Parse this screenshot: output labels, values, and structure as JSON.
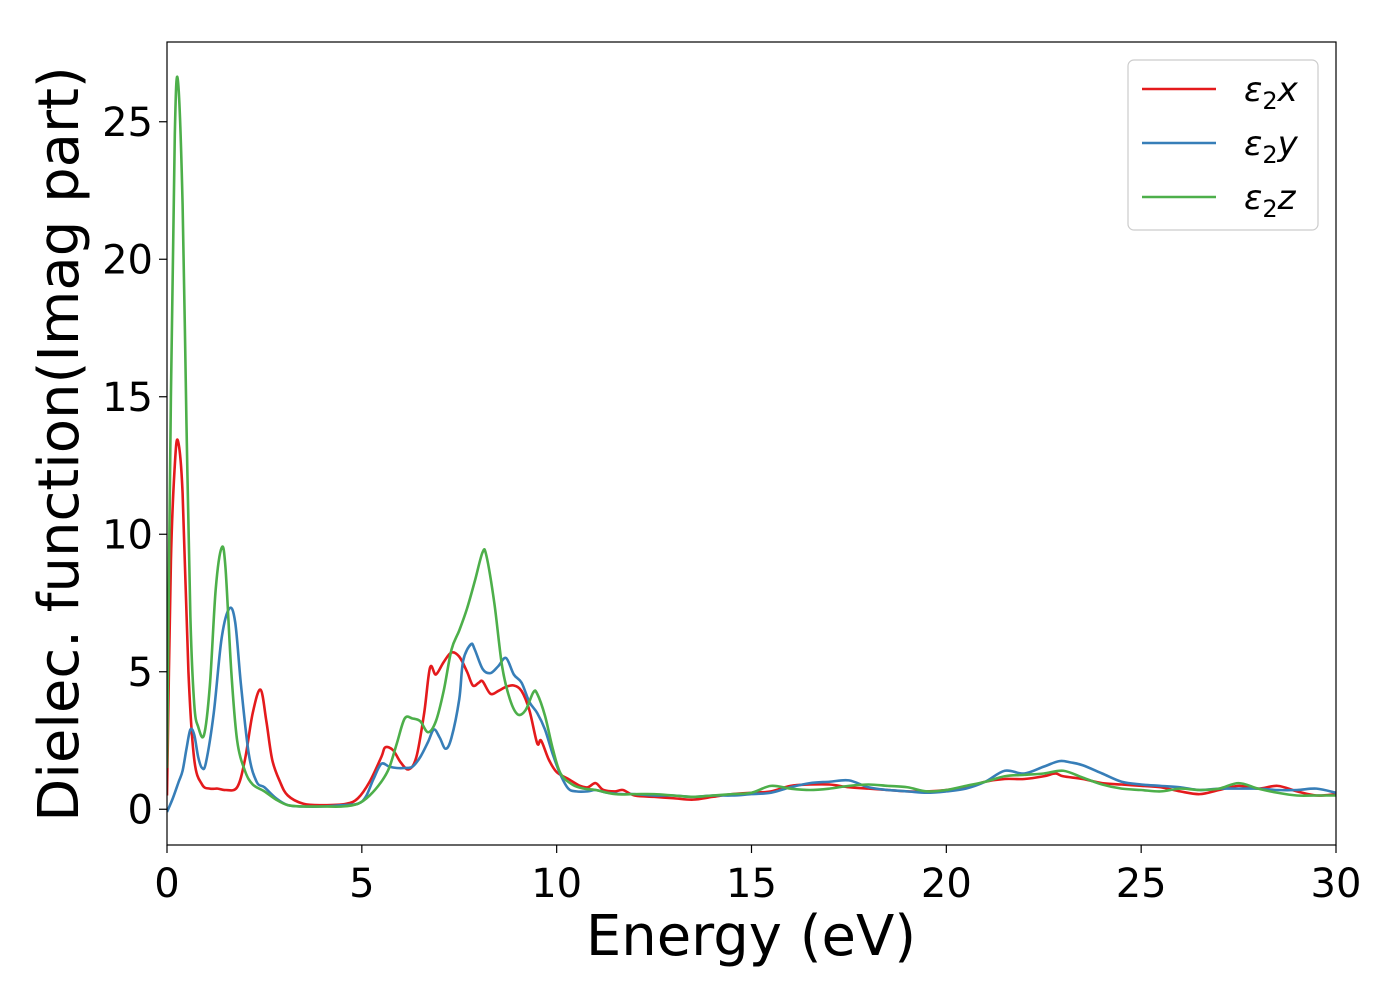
{
  "chart_data": {
    "type": "line",
    "title": "",
    "xlabel": "Energy (eV)",
    "ylabel": "Dielec. function(Imag part)",
    "xlim": [
      0,
      30
    ],
    "ylim": [
      -1.3,
      27.9
    ],
    "xticks": [
      0,
      5,
      10,
      15,
      20,
      25,
      30
    ],
    "xtick_labels": [
      "0",
      "5",
      "10",
      "15",
      "20",
      "25",
      "30"
    ],
    "yticks": [
      0,
      5,
      10,
      15,
      20,
      25
    ],
    "ytick_labels": [
      "0",
      "5",
      "10",
      "15",
      "20",
      "25"
    ],
    "grid": false,
    "legend_position": "top-right",
    "series": [
      {
        "name": "ε2x",
        "legend": {
          "base": "ε",
          "sub": "2",
          "suffix": "x"
        },
        "color": "#e41a1c",
        "points": [
          [
            0,
            0.5
          ],
          [
            0.1,
            9
          ],
          [
            0.2,
            12.5
          ],
          [
            0.28,
            13.4
          ],
          [
            0.4,
            11.5
          ],
          [
            0.55,
            5
          ],
          [
            0.7,
            1.8
          ],
          [
            0.9,
            0.9
          ],
          [
            1.1,
            0.75
          ],
          [
            1.3,
            0.75
          ],
          [
            1.5,
            0.7
          ],
          [
            1.8,
            0.8
          ],
          [
            2.0,
            1.8
          ],
          [
            2.2,
            3.5
          ],
          [
            2.4,
            4.35
          ],
          [
            2.55,
            3.2
          ],
          [
            2.7,
            1.8
          ],
          [
            2.9,
            1.0
          ],
          [
            3.1,
            0.5
          ],
          [
            3.5,
            0.2
          ],
          [
            4.0,
            0.15
          ],
          [
            4.6,
            0.2
          ],
          [
            4.9,
            0.4
          ],
          [
            5.2,
            1.0
          ],
          [
            5.5,
            1.9
          ],
          [
            5.6,
            2.25
          ],
          [
            5.8,
            2.15
          ],
          [
            6.0,
            1.7
          ],
          [
            6.2,
            1.45
          ],
          [
            6.4,
            1.9
          ],
          [
            6.6,
            3.5
          ],
          [
            6.75,
            5.15
          ],
          [
            6.9,
            4.9
          ],
          [
            7.1,
            5.35
          ],
          [
            7.3,
            5.7
          ],
          [
            7.5,
            5.55
          ],
          [
            7.7,
            5.0
          ],
          [
            7.85,
            4.5
          ],
          [
            8.0,
            4.6
          ],
          [
            8.1,
            4.65
          ],
          [
            8.3,
            4.2
          ],
          [
            8.5,
            4.3
          ],
          [
            8.7,
            4.45
          ],
          [
            8.9,
            4.5
          ],
          [
            9.1,
            4.3
          ],
          [
            9.3,
            3.6
          ],
          [
            9.5,
            2.4
          ],
          [
            9.6,
            2.5
          ],
          [
            9.8,
            1.8
          ],
          [
            10.0,
            1.35
          ],
          [
            10.3,
            1.1
          ],
          [
            10.6,
            0.85
          ],
          [
            10.8,
            0.8
          ],
          [
            11.0,
            0.95
          ],
          [
            11.2,
            0.7
          ],
          [
            11.5,
            0.65
          ],
          [
            11.7,
            0.7
          ],
          [
            12.0,
            0.5
          ],
          [
            12.5,
            0.45
          ],
          [
            13.0,
            0.4
          ],
          [
            13.5,
            0.35
          ],
          [
            14.0,
            0.45
          ],
          [
            14.5,
            0.55
          ],
          [
            15.0,
            0.6
          ],
          [
            15.5,
            0.65
          ],
          [
            16.0,
            0.85
          ],
          [
            16.5,
            0.9
          ],
          [
            17.0,
            0.9
          ],
          [
            17.5,
            0.8
          ],
          [
            18.0,
            0.75
          ],
          [
            18.5,
            0.7
          ],
          [
            19.0,
            0.65
          ],
          [
            19.5,
            0.65
          ],
          [
            20.0,
            0.7
          ],
          [
            20.5,
            0.8
          ],
          [
            21.0,
            1.0
          ],
          [
            21.5,
            1.1
          ],
          [
            22.0,
            1.1
          ],
          [
            22.5,
            1.2
          ],
          [
            22.8,
            1.3
          ],
          [
            23.0,
            1.2
          ],
          [
            23.5,
            1.1
          ],
          [
            24.0,
            0.95
          ],
          [
            24.5,
            0.9
          ],
          [
            25.0,
            0.85
          ],
          [
            25.5,
            0.8
          ],
          [
            26.0,
            0.65
          ],
          [
            26.5,
            0.55
          ],
          [
            27.0,
            0.7
          ],
          [
            27.5,
            0.85
          ],
          [
            28.0,
            0.75
          ],
          [
            28.5,
            0.85
          ],
          [
            29.0,
            0.65
          ],
          [
            29.5,
            0.5
          ],
          [
            30.0,
            0.55
          ]
        ]
      },
      {
        "name": "ε2y",
        "legend": {
          "base": "ε",
          "sub": "2",
          "suffix": "y"
        },
        "color": "#377eb8",
        "points": [
          [
            0,
            -0.1
          ],
          [
            0.15,
            0.4
          ],
          [
            0.3,
            1.0
          ],
          [
            0.4,
            1.4
          ],
          [
            0.5,
            2.2
          ],
          [
            0.6,
            2.9
          ],
          [
            0.7,
            2.7
          ],
          [
            0.8,
            1.9
          ],
          [
            0.9,
            1.5
          ],
          [
            1.0,
            1.7
          ],
          [
            1.2,
            3.5
          ],
          [
            1.4,
            6.2
          ],
          [
            1.6,
            7.3
          ],
          [
            1.75,
            6.8
          ],
          [
            1.9,
            4.5
          ],
          [
            2.1,
            2.0
          ],
          [
            2.3,
            1.0
          ],
          [
            2.5,
            0.8
          ],
          [
            2.8,
            0.4
          ],
          [
            3.1,
            0.15
          ],
          [
            3.5,
            0.1
          ],
          [
            4.0,
            0.1
          ],
          [
            4.5,
            0.15
          ],
          [
            4.9,
            0.2
          ],
          [
            5.1,
            0.45
          ],
          [
            5.3,
            1.1
          ],
          [
            5.5,
            1.65
          ],
          [
            5.7,
            1.55
          ],
          [
            5.9,
            1.5
          ],
          [
            6.1,
            1.5
          ],
          [
            6.3,
            1.55
          ],
          [
            6.5,
            1.9
          ],
          [
            6.7,
            2.45
          ],
          [
            6.85,
            2.9
          ],
          [
            7.0,
            2.6
          ],
          [
            7.15,
            2.2
          ],
          [
            7.3,
            2.6
          ],
          [
            7.5,
            4.0
          ],
          [
            7.6,
            5.4
          ],
          [
            7.8,
            6.0
          ],
          [
            7.9,
            5.8
          ],
          [
            8.1,
            5.1
          ],
          [
            8.3,
            4.95
          ],
          [
            8.5,
            5.2
          ],
          [
            8.7,
            5.5
          ],
          [
            8.9,
            4.9
          ],
          [
            9.1,
            4.6
          ],
          [
            9.3,
            3.9
          ],
          [
            9.5,
            3.5
          ],
          [
            9.7,
            2.9
          ],
          [
            9.9,
            2.0
          ],
          [
            10.1,
            1.25
          ],
          [
            10.3,
            0.75
          ],
          [
            10.5,
            0.65
          ],
          [
            10.8,
            0.65
          ],
          [
            11.0,
            0.7
          ],
          [
            11.3,
            0.6
          ],
          [
            11.7,
            0.55
          ],
          [
            12.0,
            0.55
          ],
          [
            12.5,
            0.5
          ],
          [
            13.0,
            0.5
          ],
          [
            13.5,
            0.45
          ],
          [
            14.0,
            0.5
          ],
          [
            14.5,
            0.5
          ],
          [
            15.0,
            0.55
          ],
          [
            15.5,
            0.6
          ],
          [
            16.0,
            0.8
          ],
          [
            16.5,
            0.95
          ],
          [
            17.0,
            1.0
          ],
          [
            17.5,
            1.05
          ],
          [
            18.0,
            0.8
          ],
          [
            18.5,
            0.7
          ],
          [
            19.0,
            0.65
          ],
          [
            19.5,
            0.6
          ],
          [
            20.0,
            0.65
          ],
          [
            20.5,
            0.75
          ],
          [
            21.0,
            1.0
          ],
          [
            21.5,
            1.4
          ],
          [
            22.0,
            1.3
          ],
          [
            22.5,
            1.55
          ],
          [
            22.9,
            1.75
          ],
          [
            23.2,
            1.7
          ],
          [
            23.5,
            1.6
          ],
          [
            24.0,
            1.3
          ],
          [
            24.5,
            1.0
          ],
          [
            25.0,
            0.9
          ],
          [
            25.5,
            0.85
          ],
          [
            26.0,
            0.8
          ],
          [
            26.5,
            0.7
          ],
          [
            27.0,
            0.75
          ],
          [
            27.5,
            0.75
          ],
          [
            28.0,
            0.75
          ],
          [
            28.5,
            0.7
          ],
          [
            29.0,
            0.7
          ],
          [
            29.5,
            0.75
          ],
          [
            30.0,
            0.6
          ]
        ]
      },
      {
        "name": "ε2z",
        "legend": {
          "base": "ε",
          "sub": "2",
          "suffix": "z"
        },
        "color": "#4daf4a",
        "points": [
          [
            0,
            1.5
          ],
          [
            0.1,
            15
          ],
          [
            0.2,
            24.5
          ],
          [
            0.28,
            26.5
          ],
          [
            0.4,
            22
          ],
          [
            0.5,
            14
          ],
          [
            0.6,
            7
          ],
          [
            0.7,
            3.8
          ],
          [
            0.8,
            3.0
          ],
          [
            0.95,
            2.7
          ],
          [
            1.1,
            4.5
          ],
          [
            1.25,
            8.0
          ],
          [
            1.4,
            9.5
          ],
          [
            1.5,
            8.8
          ],
          [
            1.65,
            5.0
          ],
          [
            1.8,
            2.5
          ],
          [
            2.0,
            1.4
          ],
          [
            2.2,
            0.9
          ],
          [
            2.5,
            0.65
          ],
          [
            2.8,
            0.35
          ],
          [
            3.1,
            0.15
          ],
          [
            3.5,
            0.1
          ],
          [
            4.0,
            0.1
          ],
          [
            4.5,
            0.1
          ],
          [
            4.9,
            0.2
          ],
          [
            5.2,
            0.5
          ],
          [
            5.5,
            1.0
          ],
          [
            5.7,
            1.5
          ],
          [
            5.9,
            2.4
          ],
          [
            6.1,
            3.3
          ],
          [
            6.3,
            3.3
          ],
          [
            6.5,
            3.2
          ],
          [
            6.7,
            2.8
          ],
          [
            6.9,
            3.2
          ],
          [
            7.1,
            4.3
          ],
          [
            7.3,
            5.8
          ],
          [
            7.5,
            6.5
          ],
          [
            7.7,
            7.3
          ],
          [
            7.9,
            8.3
          ],
          [
            8.1,
            9.35
          ],
          [
            8.2,
            9.2
          ],
          [
            8.4,
            7.5
          ],
          [
            8.6,
            5.2
          ],
          [
            8.8,
            4.0
          ],
          [
            9.0,
            3.45
          ],
          [
            9.2,
            3.6
          ],
          [
            9.4,
            4.25
          ],
          [
            9.5,
            4.2
          ],
          [
            9.7,
            3.4
          ],
          [
            9.9,
            2.2
          ],
          [
            10.1,
            1.3
          ],
          [
            10.4,
            0.9
          ],
          [
            10.7,
            0.75
          ],
          [
            11.0,
            0.7
          ],
          [
            11.5,
            0.55
          ],
          [
            12.0,
            0.55
          ],
          [
            12.5,
            0.55
          ],
          [
            13.0,
            0.5
          ],
          [
            13.5,
            0.45
          ],
          [
            14.0,
            0.5
          ],
          [
            14.5,
            0.55
          ],
          [
            15.0,
            0.6
          ],
          [
            15.5,
            0.85
          ],
          [
            16.0,
            0.75
          ],
          [
            16.5,
            0.7
          ],
          [
            17.0,
            0.75
          ],
          [
            17.5,
            0.85
          ],
          [
            18.0,
            0.9
          ],
          [
            18.5,
            0.85
          ],
          [
            19.0,
            0.8
          ],
          [
            19.5,
            0.65
          ],
          [
            20.0,
            0.7
          ],
          [
            20.5,
            0.85
          ],
          [
            21.0,
            1.0
          ],
          [
            21.5,
            1.2
          ],
          [
            22.0,
            1.25
          ],
          [
            22.5,
            1.3
          ],
          [
            23.0,
            1.4
          ],
          [
            23.5,
            1.15
          ],
          [
            24.0,
            0.9
          ],
          [
            24.5,
            0.75
          ],
          [
            25.0,
            0.7
          ],
          [
            25.5,
            0.65
          ],
          [
            26.0,
            0.75
          ],
          [
            26.5,
            0.7
          ],
          [
            27.0,
            0.75
          ],
          [
            27.5,
            0.95
          ],
          [
            28.0,
            0.75
          ],
          [
            28.5,
            0.6
          ],
          [
            29.0,
            0.5
          ],
          [
            29.5,
            0.5
          ],
          [
            30.0,
            0.5
          ]
        ]
      }
    ]
  }
}
